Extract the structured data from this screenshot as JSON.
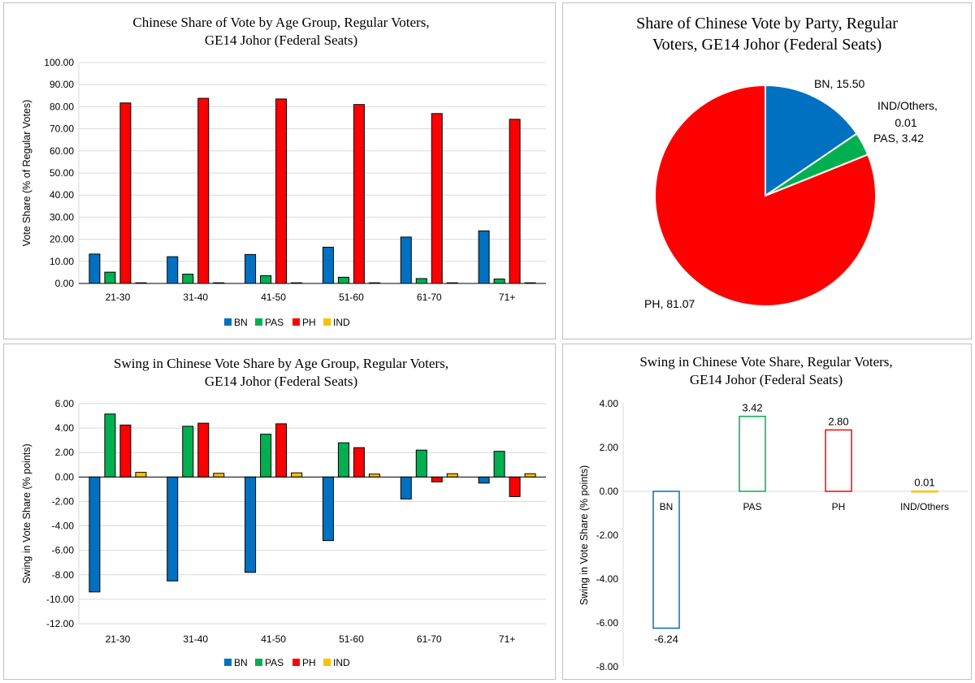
{
  "colors": {
    "BN": "#0070c0",
    "PAS": "#00b050",
    "PH": "#ff0000",
    "IND": "#ffc000",
    "axis": "#7f7f7f",
    "grid": "#d9d9d9"
  },
  "chart_data": [
    {
      "id": "c1",
      "type": "bar",
      "title": [
        "Chinese Share of Vote by Age Group, Regular Voters,",
        "GE14 Johor (Federal Seats)"
      ],
      "xlabel": "",
      "ylabel": "Vote Share (% of Regular Votes)",
      "ylim": [
        0,
        100
      ],
      "ystep": 10,
      "grid": true,
      "legend": "bottom",
      "categories": [
        "21-30",
        "31-40",
        "41-50",
        "51-60",
        "61-70",
        "71+"
      ],
      "series": [
        {
          "name": "BN",
          "values": [
            13.3,
            12.1,
            13.1,
            16.4,
            21.0,
            23.8
          ]
        },
        {
          "name": "PAS",
          "values": [
            5.1,
            4.2,
            3.5,
            2.8,
            2.2,
            2.0
          ]
        },
        {
          "name": "PH",
          "values": [
            81.7,
            83.8,
            83.5,
            81.0,
            76.9,
            74.3
          ]
        },
        {
          "name": "IND",
          "values": [
            0.3,
            0.3,
            0.3,
            0.3,
            0.3,
            0.3
          ]
        }
      ]
    },
    {
      "id": "c2",
      "type": "pie",
      "title": [
        "Share of Chinese Vote by Party, Regular",
        "Voters, GE14 Johor (Federal Seats)"
      ],
      "slices": [
        {
          "name": "BN",
          "value": 15.5,
          "label": "BN, 15.50"
        },
        {
          "name": "PAS",
          "value": 3.42,
          "label": "PAS, 3.42"
        },
        {
          "name": "IND/Others",
          "value": 0.01,
          "label": [
            "IND/Others,",
            "0.01"
          ]
        },
        {
          "name": "PH",
          "value": 81.07,
          "label": "PH, 81.07"
        }
      ]
    },
    {
      "id": "c3",
      "type": "bar",
      "title": [
        "Swing in Chinese Vote Share by Age Group, Regular Voters,",
        "GE14 Johor (Federal Seats)"
      ],
      "xlabel": "",
      "ylabel": "Swing in Vote Share (% points)",
      "ylim": [
        -12,
        6
      ],
      "ystep": 2,
      "grid": true,
      "legend": "bottom",
      "categories": [
        "21-30",
        "31-40",
        "41-50",
        "51-60",
        "61-70",
        "71+"
      ],
      "series": [
        {
          "name": "BN",
          "values": [
            -9.4,
            -8.5,
            -7.8,
            -5.2,
            -1.8,
            -0.5
          ]
        },
        {
          "name": "PAS",
          "values": [
            5.15,
            4.15,
            3.5,
            2.8,
            2.2,
            2.1
          ]
        },
        {
          "name": "PH",
          "values": [
            4.25,
            4.4,
            4.35,
            2.4,
            -0.4,
            -1.6
          ]
        },
        {
          "name": "IND",
          "values": [
            0.38,
            0.3,
            0.34,
            0.24,
            0.27,
            0.27
          ]
        }
      ]
    },
    {
      "id": "c4",
      "type": "bar",
      "title": [
        "Swing in Chinese Vote Share, Regular Voters,",
        "GE14 Johor (Federal Seats)"
      ],
      "xlabel": "",
      "ylabel": "Swing in Vote Share (% points)",
      "ylim": [
        -8,
        4
      ],
      "ystep": 2,
      "grid": false,
      "legend": "none",
      "categories": [
        "BN",
        "PAS",
        "PH",
        "IND/Others"
      ],
      "values": [
        -6.24,
        3.42,
        2.8,
        0.01
      ],
      "data_labels": [
        "-6.24",
        "3.42",
        "2.80",
        "0.01"
      ],
      "bar_colors": [
        "BN",
        "PAS",
        "PH",
        "IND"
      ]
    }
  ]
}
